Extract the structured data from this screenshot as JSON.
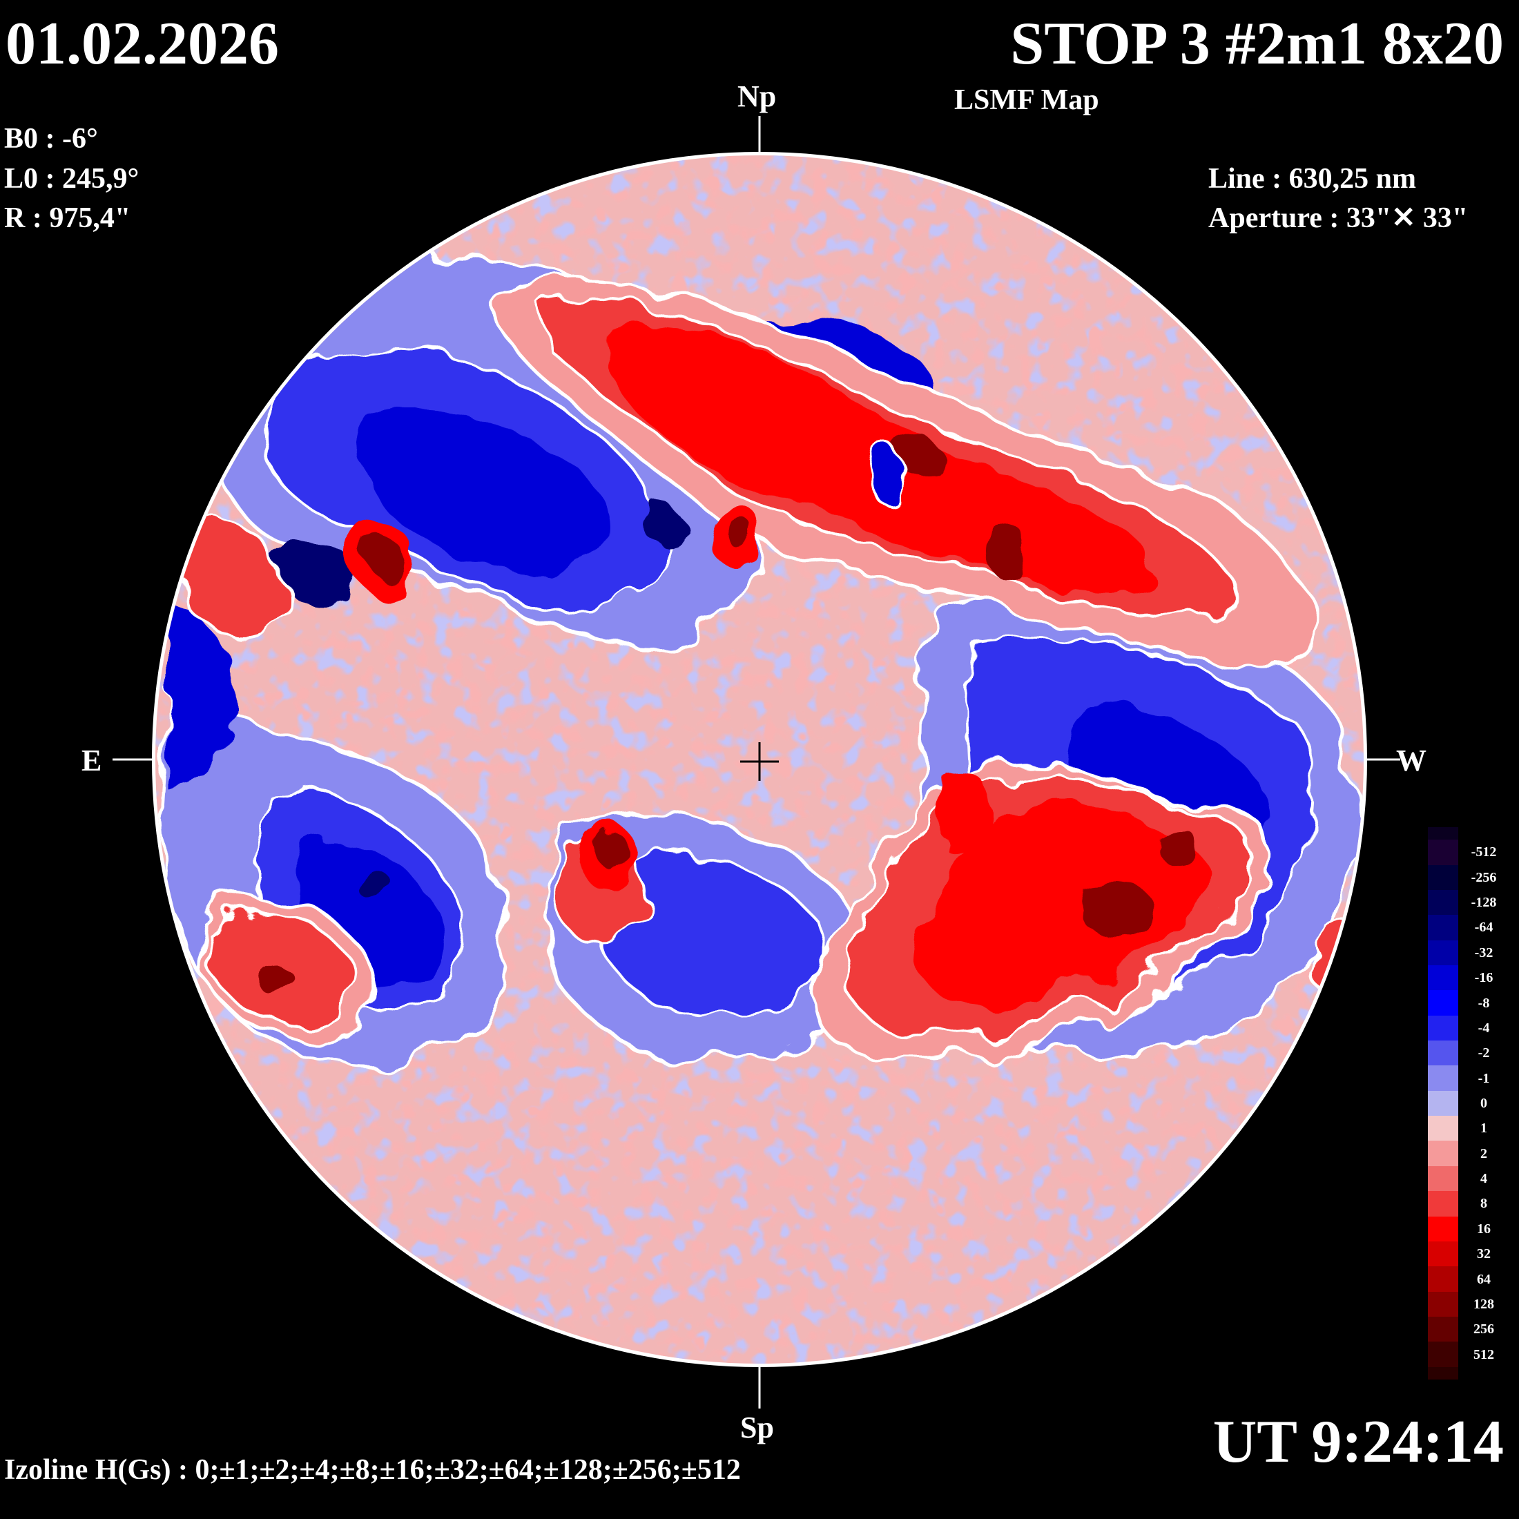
{
  "header": {
    "date": "01.02.2026",
    "title": "STOP 3 #2m1 8x20",
    "subtitle": "LSMF  Map"
  },
  "parameters": {
    "b0": "B0 : -6°",
    "l0": "L0 : 245,9°",
    "r": "R  : 975,4\""
  },
  "instrument": {
    "line": "Line :  630,25 nm",
    "aperture": "Aperture : 33\"✕ 33\""
  },
  "orientation": {
    "north": "Np",
    "south": "Sp",
    "east": "E",
    "west": "W"
  },
  "time": "UT 9:24:14",
  "izoline": "Izoline H(Gs) : 0;±1;±2;±4;±8;±16;±32;±64;±128;±256;±512",
  "legend": {
    "labels": [
      "-512",
      "-256",
      "-128",
      "-64",
      "-32",
      "-16",
      "-8",
      "-4",
      "-2",
      "-1",
      "0",
      "1",
      "2",
      "4",
      "8",
      "16",
      "32",
      "64",
      "128",
      "256",
      "512"
    ],
    "colors": [
      "#1a0033",
      "#00003a",
      "#00005a",
      "#000080",
      "#0000a8",
      "#0000d8",
      "#0000ff",
      "#2222f0",
      "#5555ee",
      "#8a8af0",
      "#b4b4f0",
      "#f5c8c8",
      "#f59a9a",
      "#f06a6a",
      "#f03a3a",
      "#ff0000",
      "#d80000",
      "#b00000",
      "#8a0000",
      "#640000",
      "#3e0000"
    ]
  },
  "map_colors": {
    "background_disk": "#f2b6b6",
    "positive_weak": "#f59a9a",
    "positive_mid": "#f03a3a",
    "positive_strong": "#ff0000",
    "positive_core": "#8a0000",
    "negative_weak": "#8a8af0",
    "negative_mid": "#3333ee",
    "negative_strong": "#0000d8",
    "negative_core": "#000070",
    "neutral": "#ffffff"
  }
}
